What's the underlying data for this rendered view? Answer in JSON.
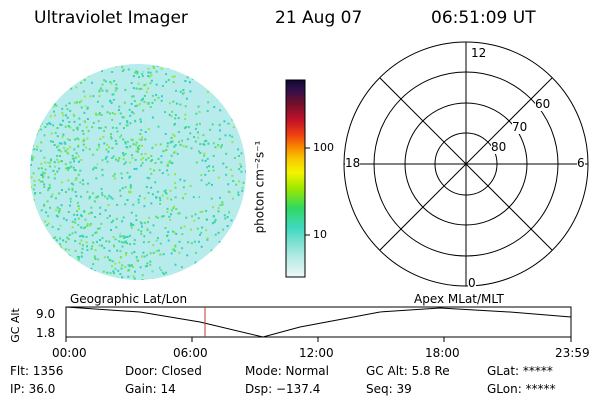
{
  "header": {
    "instrument": "Ultraviolet Imager",
    "date": "21 Aug 07",
    "time": "06:51:09 UT"
  },
  "colorbar": {
    "unit_label": "photon cm⁻²s⁻¹",
    "ticks": [
      "100",
      "10"
    ]
  },
  "polar_plot": {
    "mlt_labels": {
      "top": "12",
      "left": "18",
      "right": "6",
      "bottom": "0"
    },
    "lat_labels": [
      "60",
      "70",
      "80"
    ]
  },
  "timeline": {
    "left_title": "Geographic Lat/Lon",
    "right_title": "Apex MLat/MLT",
    "axis_label": "GC Alt",
    "y_ticks": [
      "9.0",
      "1.8"
    ],
    "x_ticks": [
      "00:00",
      "06:00",
      "12:00",
      "18:00",
      "23:59"
    ],
    "colors": {
      "marker": "#c0392b",
      "curve": "#000000"
    }
  },
  "status": {
    "row1": {
      "flt": "Flt: 1356",
      "door": "Door: Closed",
      "mode": "Mode: Normal",
      "gc_alt": "GC Alt: 5.8 Re",
      "glat": "GLat: *****"
    },
    "row2": {
      "ip": "IP: 36.0",
      "gain": "Gain: 14",
      "dsp": "Dsp: −137.4",
      "seq": "Seq: 39",
      "glon": "GLon: *****"
    }
  }
}
